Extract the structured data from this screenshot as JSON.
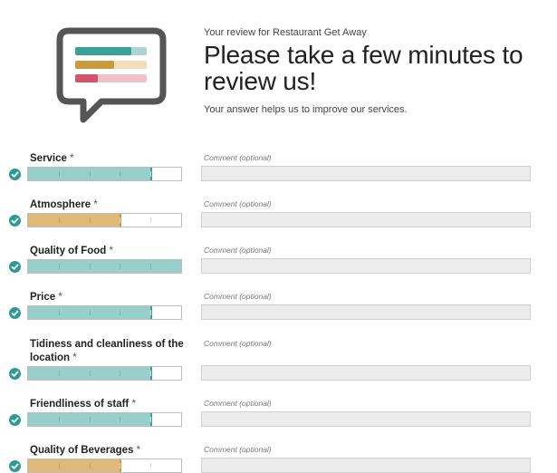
{
  "header": {
    "subtitle": "Your review for Restaurant Get Away",
    "title_line1": "Please take a few minutes to",
    "title_line2": "review us!",
    "description": "Your answer helps us to improve our services."
  },
  "colors": {
    "teal": "#99cfcb",
    "teal_dark": "#3aa199",
    "gold": "#dfb979",
    "gold_dark": "#c99b3c",
    "pink": "#d4536a",
    "check": "#2f9a92"
  },
  "comment_placeholder": "Comment (optional)",
  "criteria": [
    {
      "label": "Service",
      "required_mark": "*",
      "rating": 4,
      "max": 5,
      "color": "teal"
    },
    {
      "label": "Atmosphere",
      "required_mark": "*",
      "rating": 3,
      "max": 5,
      "color": "gold"
    },
    {
      "label": "Quality of Food",
      "required_mark": "*",
      "rating": 5,
      "max": 5,
      "color": "teal"
    },
    {
      "label": "Price",
      "required_mark": "*",
      "rating": 4,
      "max": 5,
      "color": "teal"
    },
    {
      "label": "Tidiness and cleanliness of the location",
      "required_mark": "*",
      "rating": 4,
      "max": 5,
      "color": "teal"
    },
    {
      "label": "Friendliness of staff",
      "required_mark": "*",
      "rating": 4,
      "max": 5,
      "color": "teal"
    },
    {
      "label": "Quality of Beverages",
      "required_mark": "*",
      "rating": 3,
      "max": 5,
      "color": "gold"
    }
  ]
}
